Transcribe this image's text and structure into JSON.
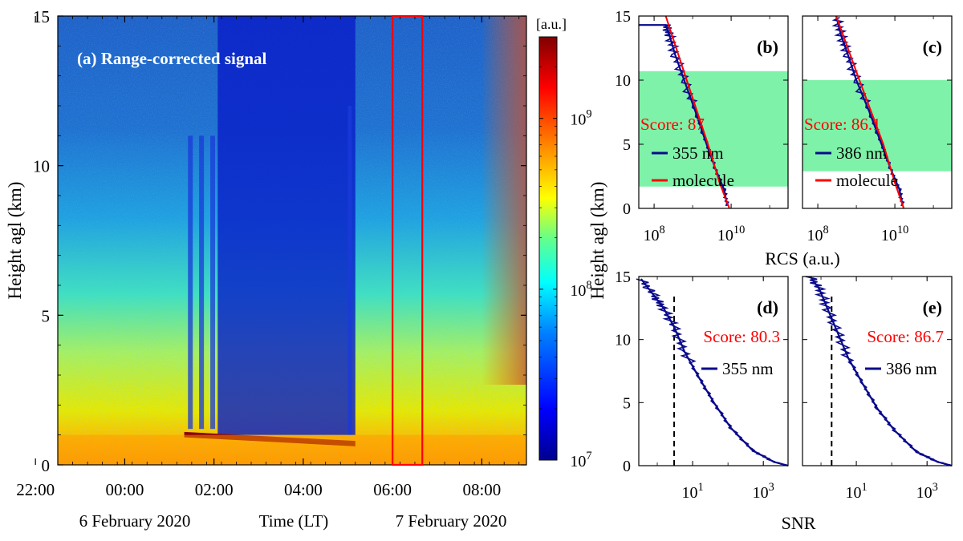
{
  "colors": {
    "colormap": [
      "#00008f",
      "#0000ff",
      "#0080ff",
      "#00ffff",
      "#80ff80",
      "#ffff00",
      "#ff8000",
      "#ff0000",
      "#800000"
    ],
    "box": "#ff0000",
    "rcs_line": "#0a0a8c",
    "molecule_line": "#ff0000",
    "score": "#ff0000",
    "band": "#7ef2a8"
  },
  "chart_data": [
    {
      "id": "a",
      "type": "heatmap",
      "title": "(a) Range-corrected signal",
      "ylabel": "Height agl (km)",
      "xlabel": "Time (LT)",
      "ylim": [
        0,
        15
      ],
      "yticks": [
        "0",
        "5",
        "10",
        "15"
      ],
      "xticks": [
        "22:00",
        "00:00",
        "02:00",
        "04:00",
        "06:00",
        "08:00"
      ],
      "date_labels": [
        "6 February 2020",
        "7 February 2020"
      ],
      "colorbar": {
        "unit": "[a.u.]",
        "scale": "log",
        "range": [
          10000000.0,
          3000000000.0
        ],
        "ticks": [
          {
            "base": "10",
            "exp": "7"
          },
          {
            "base": "10",
            "exp": "8"
          },
          {
            "base": "10",
            "exp": "9"
          }
        ]
      },
      "highlight_box": {
        "start": "06:00",
        "end": "06:40"
      },
      "aerosol_layer_height_km": 1.0,
      "cloud_base_height_km": {
        "start": 1.1,
        "end": 0.8
      },
      "cloud_period": {
        "start": "01:25",
        "end": "05:10"
      }
    },
    {
      "id": "b",
      "type": "line",
      "label": "(b)",
      "xscale": "log",
      "xlim": [
        40000000.0,
        300000000000.0
      ],
      "ylim": [
        0,
        15
      ],
      "yticks": [
        "0",
        "5",
        "10",
        "15"
      ],
      "xticks": [
        {
          "base": "10",
          "exp": "8"
        },
        {
          "base": "10",
          "exp": "10"
        }
      ],
      "score": "Score: 87",
      "shaded_range_km": [
        1.7,
        10.7
      ],
      "series": [
        {
          "name": "355 nm",
          "shape": "rcs",
          "points": [
            [
              8000000000.0,
              0.2
            ],
            [
              6500000000.0,
              1.5
            ],
            [
              4000000000.0,
              3
            ],
            [
              2300000000.0,
              5
            ],
            [
              1200000000.0,
              7.5
            ],
            [
              600000000.0,
              10
            ],
            [
              350000000.0,
              12
            ],
            [
              250000000.0,
              13.5
            ],
            [
              200000000.0,
              14.3
            ],
            [
              40000000.0,
              14.3
            ]
          ]
        },
        {
          "name": "molecule",
          "shape": "line",
          "points": [
            [
              9000000000.0,
              0
            ],
            [
              5000000000.0,
              2
            ],
            [
              2500000000.0,
              5
            ],
            [
              700000000.0,
              10
            ],
            [
              200000000.0,
              15
            ]
          ]
        }
      ]
    },
    {
      "id": "c",
      "type": "line",
      "label": "(c)",
      "xscale": "log",
      "xlim": [
        40000000.0,
        300000000000.0
      ],
      "ylim": [
        0,
        15
      ],
      "yticks": [
        "0",
        "5",
        "10",
        "15"
      ],
      "xticks": [
        {
          "base": "10",
          "exp": "8"
        },
        {
          "base": "10",
          "exp": "10"
        }
      ],
      "score": "Score: 86.1",
      "shaded_range_km": [
        2.9,
        10.0
      ],
      "series": [
        {
          "name": "386 nm",
          "shape": "rcs",
          "points": [
            [
              16000000000.0,
              0.2
            ],
            [
              13000000000.0,
              1.5
            ],
            [
              8000000000.0,
              3
            ],
            [
              4500000000.0,
              5
            ],
            [
              2200000000.0,
              7.5
            ],
            [
              1000000000.0,
              10
            ],
            [
              600000000.0,
              12
            ],
            [
              400000000.0,
              13.5
            ],
            [
              300000000.0,
              15
            ]
          ]
        },
        {
          "name": "molecule",
          "shape": "line",
          "points": [
            [
              17000000000.0,
              0
            ],
            [
              10000000000.0,
              2
            ],
            [
              5000000000.0,
              5
            ],
            [
              1200000000.0,
              10
            ],
            [
              300000000.0,
              15
            ]
          ]
        }
      ]
    },
    {
      "id": "d",
      "type": "line",
      "label": "(d)",
      "xscale": "log",
      "xlim": [
        0.3,
        5000
      ],
      "ylim": [
        0,
        15
      ],
      "yticks": [
        "0",
        "5",
        "10",
        "15"
      ],
      "xticks": [
        {
          "base": "10",
          "exp": "1"
        },
        {
          "base": "10",
          "exp": "3"
        }
      ],
      "score": "Score: 80.3",
      "threshold_snr": 3,
      "series": [
        {
          "name": "355 nm",
          "shape": "snr",
          "points": [
            [
              0.35,
              14.8
            ],
            [
              0.8,
              13.5
            ],
            [
              1.5,
              12.5
            ],
            [
              3,
              11
            ],
            [
              6,
              9
            ],
            [
              15,
              7
            ],
            [
              40,
              5
            ],
            [
              120,
              3
            ],
            [
              500,
              1.2
            ],
            [
              2000,
              0.3
            ],
            [
              5000,
              0
            ]
          ]
        }
      ]
    },
    {
      "id": "e",
      "type": "line",
      "label": "(e)",
      "xscale": "log",
      "xlim": [
        0.3,
        5000
      ],
      "ylim": [
        0,
        15
      ],
      "yticks": [
        "0",
        "5",
        "10",
        "15"
      ],
      "xticks": [
        {
          "base": "10",
          "exp": "1"
        },
        {
          "base": "10",
          "exp": "3"
        }
      ],
      "score": "Score: 86.7",
      "threshold_snr": 2,
      "series": [
        {
          "name": "386 nm",
          "shape": "snr",
          "points": [
            [
              0.5,
              15
            ],
            [
              0.9,
              14
            ],
            [
              1.5,
              12.5
            ],
            [
              3,
              10.5
            ],
            [
              6,
              8.5
            ],
            [
              15,
              6.5
            ],
            [
              40,
              4.5
            ],
            [
              120,
              2.8
            ],
            [
              500,
              1.1
            ],
            [
              2000,
              0.3
            ],
            [
              5000,
              0
            ]
          ]
        }
      ]
    }
  ],
  "shared_labels": {
    "rcs_xlabel": "RCS (a.u.)",
    "snr_xlabel": "SNR",
    "right_ylabel": "Height agl (km)"
  }
}
